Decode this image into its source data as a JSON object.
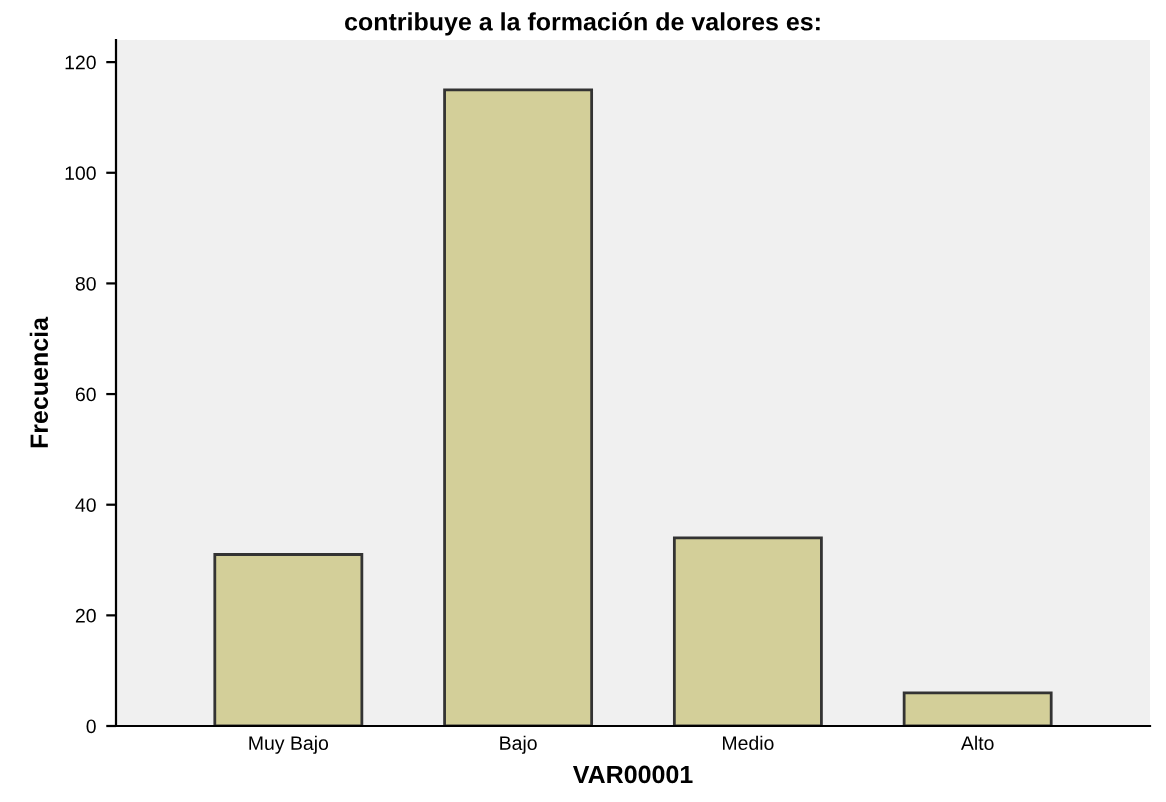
{
  "chart_data": {
    "type": "bar",
    "title": "contribuye a la formación de valores es:",
    "xlabel": "VAR00001",
    "ylabel": "Frecuencia",
    "categories": [
      "Muy Bajo",
      "Bajo",
      "Medio",
      "Alto"
    ],
    "values": [
      31,
      115,
      34,
      6
    ],
    "color": "#d3cf99",
    "ylim": [
      0,
      124
    ],
    "yticks": [
      0,
      20,
      40,
      60,
      80,
      100,
      120
    ],
    "grid": false
  }
}
